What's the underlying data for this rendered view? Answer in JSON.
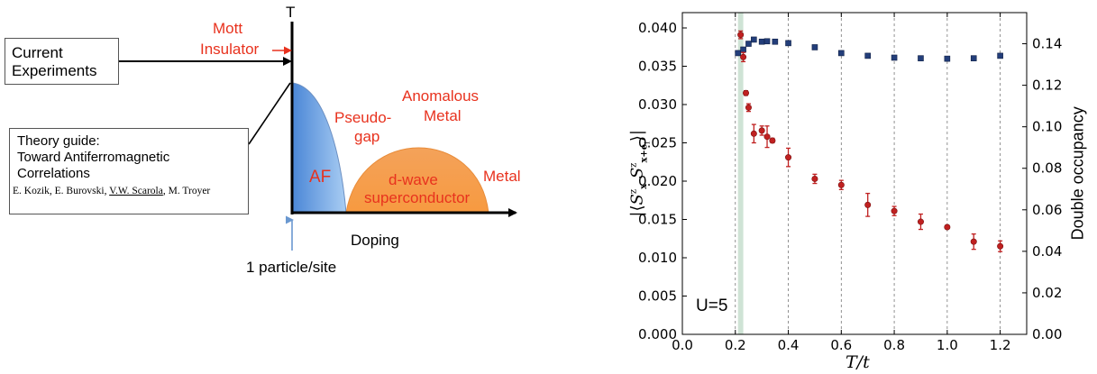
{
  "diagram": {
    "t_axis_label": "T",
    "x_axis_label": "Doping",
    "mott_line1": "Mott",
    "mott_line2": "Insulator",
    "current_line1": "Current",
    "current_line2": "Experiments",
    "theory_line1": "Theory guide:",
    "theory_line2": "Toward Antiferromagnetic",
    "theory_line3": "Correlations",
    "authors_a": "E. Kozik, E. Burovski, ",
    "authors_b": "V.W. Scarola",
    "authors_c": ", M. Troyer",
    "particle_label": "1 particle/site",
    "af_label": "AF",
    "pseudo_line1": "Pseudo-",
    "pseudo_line2": "gap",
    "anom_line1": "Anomalous",
    "anom_line2": "Metal",
    "dwave_line1": "d-wave",
    "dwave_line2": "superconductor",
    "metal_label": "Metal",
    "colors": {
      "red": "#e8321e",
      "af_fill": "#7fb0ec",
      "sc_fill": "#f7a35a"
    }
  },
  "chart_data": {
    "type": "scatter",
    "xlabel": "T/t",
    "ylabel_left": "|⟨S_x^z S_{x+e_i}^z⟩|",
    "ylabel_right": "Double occupancy",
    "annotation": "U=5",
    "xlim": [
      0.0,
      1.3
    ],
    "ylim_left": [
      0.0,
      0.042
    ],
    "ylim_right": [
      0.0,
      0.155
    ],
    "x_ticks": [
      "0.0",
      "0.2",
      "0.4",
      "0.6",
      "0.8",
      "1.0",
      "1.2"
    ],
    "y_left_ticks": [
      "0.000",
      "0.005",
      "0.010",
      "0.015",
      "0.020",
      "0.025",
      "0.030",
      "0.035",
      "0.040"
    ],
    "y_right_ticks": [
      "0.00",
      "0.02",
      "0.04",
      "0.06",
      "0.08",
      "0.10",
      "0.12",
      "0.14"
    ],
    "grid": "vertical-dashed",
    "highlight_band": {
      "x": [
        0.21,
        0.23
      ],
      "color": "#cfe3d5"
    },
    "series": [
      {
        "axis": "left",
        "marker": "circle",
        "color": "#c02020",
        "points": [
          {
            "x": 0.22,
            "y": 0.0391,
            "err": 0.0005
          },
          {
            "x": 0.23,
            "y": 0.0362,
            "err": 0.0006
          },
          {
            "x": 0.24,
            "y": 0.0315,
            "err": 0.0003
          },
          {
            "x": 0.25,
            "y": 0.0296,
            "err": 0.0005
          },
          {
            "x": 0.27,
            "y": 0.0262,
            "err": 0.0012
          },
          {
            "x": 0.3,
            "y": 0.0266,
            "err": 0.0006
          },
          {
            "x": 0.32,
            "y": 0.0258,
            "err": 0.0014
          },
          {
            "x": 0.34,
            "y": 0.0253,
            "err": 0.0003
          },
          {
            "x": 0.4,
            "y": 0.0231,
            "err": 0.0012
          },
          {
            "x": 0.5,
            "y": 0.0203,
            "err": 0.0006
          },
          {
            "x": 0.6,
            "y": 0.0195,
            "err": 0.0006
          },
          {
            "x": 0.7,
            "y": 0.0169,
            "err": 0.0015
          },
          {
            "x": 0.8,
            "y": 0.0161,
            "err": 0.0006
          },
          {
            "x": 0.9,
            "y": 0.0147,
            "err": 0.001
          },
          {
            "x": 1.0,
            "y": 0.014,
            "err": 0.0002
          },
          {
            "x": 1.1,
            "y": 0.0121,
            "err": 0.001
          },
          {
            "x": 1.2,
            "y": 0.0115,
            "err": 0.0007
          }
        ]
      },
      {
        "axis": "right",
        "marker": "square",
        "color": "#233e7a",
        "points": [
          {
            "x": 0.21,
            "y": 0.1355
          },
          {
            "x": 0.23,
            "y": 0.1372
          },
          {
            "x": 0.25,
            "y": 0.14
          },
          {
            "x": 0.27,
            "y": 0.142
          },
          {
            "x": 0.3,
            "y": 0.141
          },
          {
            "x": 0.32,
            "y": 0.1412
          },
          {
            "x": 0.35,
            "y": 0.141
          },
          {
            "x": 0.4,
            "y": 0.1403
          },
          {
            "x": 0.5,
            "y": 0.1383
          },
          {
            "x": 0.6,
            "y": 0.1355
          },
          {
            "x": 0.7,
            "y": 0.1342
          },
          {
            "x": 0.8,
            "y": 0.1333
          },
          {
            "x": 0.9,
            "y": 0.133
          },
          {
            "x": 1.0,
            "y": 0.1328
          },
          {
            "x": 1.1,
            "y": 0.133
          },
          {
            "x": 1.2,
            "y": 0.1342
          }
        ]
      }
    ]
  }
}
